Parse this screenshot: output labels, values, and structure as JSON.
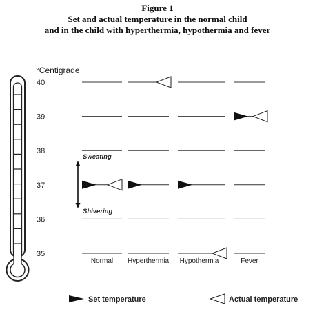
{
  "figure": {
    "label": "Figure 1",
    "title_line1": "Set and actual temperature in the normal child",
    "title_line2": "and in the child with hyperthermia, hypothermia and fever"
  },
  "chart_data": {
    "type": "diagram",
    "unit_label": "°Centigrade",
    "y_ticks": [
      "40",
      "39",
      "38",
      "37",
      "36",
      "35"
    ],
    "ylim": [
      35,
      40
    ],
    "categories": [
      "Normal",
      "Hyperthermia",
      "Hypothermia",
      "Fever"
    ],
    "set_temperature": [
      37,
      37,
      37,
      39
    ],
    "actual_temperature": [
      37,
      40,
      35,
      39
    ],
    "annotations": {
      "upper": "Sweating",
      "lower": "Shivering"
    },
    "legend": {
      "set": "Set temperature",
      "actual": "Actual temperature"
    }
  }
}
